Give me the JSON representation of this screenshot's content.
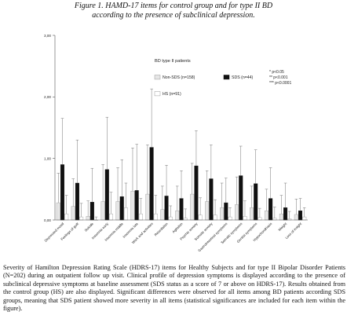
{
  "figure": {
    "title_line1": "Figure 1. HAMD-17 items for control group and for type II BD",
    "title_line2": "according to the presence of subclinical depression.",
    "footnote": "Severity of Hamilton Depression Rating Scale (HDRS-17) items for Healthy Subjects and for type II Bipolar Disorder Patients (N=202) during an outpatient follow up visit. Clinical profile of depression symptoms is displayed according to the presence of subclinical depressive symptoms at baseline assessment (SDS status as a score of 7 or above on HDRS-17). Results obtained from the control group (HS) are also displayed. Significant differences were observed for all items among BD patients according SDS groups, meaning that SDS patient showed more severity in all items (statistical significances are included for each item within the figure)."
  },
  "chart_data": {
    "type": "bar",
    "legend_title": "BD type II patients",
    "legend_placement": "top-center",
    "significance_legend": [
      "* p<0.05",
      "** p<0.001",
      "*** p<0.0001"
    ],
    "ylim": [
      0,
      3
    ],
    "yticks": [
      "0,00",
      "1,00",
      "2,00",
      "3,00"
    ],
    "categories": [
      "Depressed mood",
      "Feelings of guilt",
      "Suicide",
      "Insomnia early",
      "Insomnia middle",
      "Insomnia late",
      "Work and activities",
      "Retardation",
      "Agitation",
      "Psychic anxiety",
      "Somatic anxiety",
      "Gastrointestinal symptoms",
      "Somatic symptoms",
      "Genital symptoms",
      "Hypochondriasis",
      "Weight",
      "Loss of insight"
    ],
    "series": [
      {
        "name": "Non-SDS (n=158)",
        "color": "#e6e6e6",
        "values": [
          0.28,
          0.22,
          0.06,
          0.3,
          0.3,
          0.47,
          0.42,
          0.17,
          0.15,
          0.42,
          0.3,
          0.2,
          0.25,
          0.2,
          0.15,
          0.1,
          0.09
        ],
        "errors": [
          0.48,
          0.45,
          0.25,
          0.6,
          0.55,
          0.7,
          0.8,
          0.38,
          0.4,
          0.5,
          0.5,
          0.4,
          0.45,
          0.35,
          0.35,
          0.3,
          0.25
        ]
      },
      {
        "name": "SDS (n=44)",
        "color": "#111111",
        "values": [
          0.9,
          0.6,
          0.29,
          0.82,
          0.38,
          0.48,
          1.18,
          0.39,
          0.35,
          0.88,
          0.67,
          0.28,
          0.72,
          0.59,
          0.35,
          0.2,
          0.15
        ],
        "errors": [
          0.75,
          0.7,
          0.55,
          0.85,
          0.6,
          0.75,
          0.95,
          0.5,
          0.45,
          0.57,
          0.55,
          0.4,
          0.48,
          0.55,
          0.5,
          0.4,
          0.2
        ]
      },
      {
        "name": "HS (n=91)",
        "color": "#ffffff",
        "values": [
          0.1,
          0.05,
          0.0,
          0.1,
          0.2,
          0.1,
          0.1,
          0.05,
          0.03,
          0.08,
          0.08,
          0.05,
          0.06,
          0.04,
          0.03,
          0.02,
          0.05
        ],
        "errors": [
          0.3,
          0.22,
          0.05,
          0.35,
          0.4,
          0.25,
          0.3,
          0.18,
          0.15,
          0.28,
          0.25,
          0.15,
          0.25,
          0.15,
          0.18,
          0.12,
          0.15
        ]
      }
    ]
  }
}
